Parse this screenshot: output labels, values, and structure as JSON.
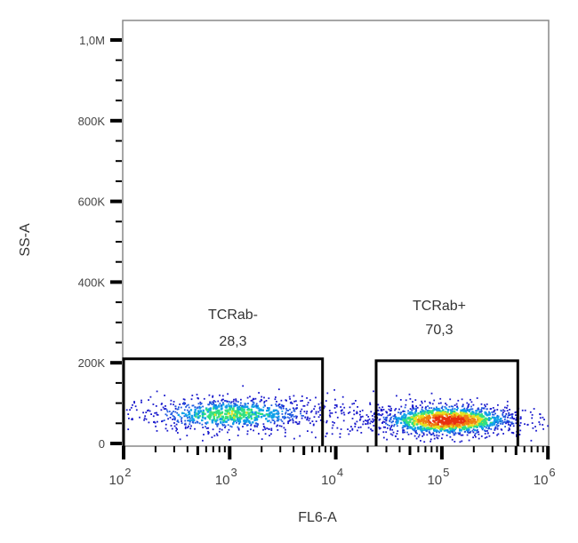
{
  "chart_data": {
    "type": "scatter",
    "subtype": "flow-cytometry-pseudocolor-dot-plot",
    "title": "",
    "xlabel": "FL6-A",
    "ylabel": "SS-A",
    "x_scale": "log",
    "xlim": [
      100,
      1000000
    ],
    "ylim": [
      0,
      1000000
    ],
    "x_ticks": [
      {
        "value": 100,
        "base": "10",
        "exp": "2"
      },
      {
        "value": 1000,
        "base": "10",
        "exp": "3"
      },
      {
        "value": 10000,
        "base": "10",
        "exp": "4"
      },
      {
        "value": 100000,
        "base": "10",
        "exp": "5"
      },
      {
        "value": 1000000,
        "base": "10",
        "exp": "6"
      }
    ],
    "y_ticks": [
      {
        "value": 0,
        "label": "0"
      },
      {
        "value": 200000,
        "label": "200K"
      },
      {
        "value": 400000,
        "label": "400K"
      },
      {
        "value": 600000,
        "label": "600K"
      },
      {
        "value": 800000,
        "label": "800K"
      },
      {
        "value": 1000000,
        "label": "1,0M"
      }
    ],
    "grid": false,
    "legend": null,
    "gates": [
      {
        "name": "TCRab-",
        "percent": "28,3",
        "x_range": [
          100,
          7500
        ],
        "y_range": [
          0,
          210000
        ]
      },
      {
        "name": "TCRab+",
        "percent": "70,3",
        "x_range": [
          24000,
          520000
        ],
        "y_range": [
          0,
          205000
        ]
      }
    ],
    "populations": [
      {
        "name": "TCRab- cluster",
        "x_center": 1000,
        "x_spread_decades": 0.45,
        "y_center": 75000,
        "y_spread": 22000,
        "density": "low-medium",
        "n_points": 900
      },
      {
        "name": "TCRab+ cluster",
        "x_center": 110000,
        "x_spread_decades": 0.35,
        "y_center": 60000,
        "y_spread": 20000,
        "density": "high",
        "n_points": 1400
      },
      {
        "name": "intermediate scatter",
        "x_center": 12000,
        "x_spread_decades": 0.25,
        "y_center": 70000,
        "y_spread": 25000,
        "density": "sparse",
        "n_points": 60
      }
    ],
    "colors": {
      "low": "#1a1acc",
      "mid_low": "#0fa0e8",
      "mid": "#30e080",
      "mid_high": "#e8e020",
      "high": "#e83010",
      "gate": "#000000",
      "frame": "#888888"
    }
  }
}
